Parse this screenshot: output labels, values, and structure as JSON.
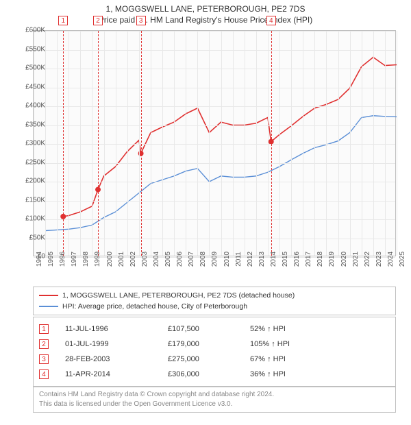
{
  "title_line1": "1, MOGGSWELL LANE, PETERBOROUGH, PE2 7DS",
  "title_line2": "Price paid vs. HM Land Registry's House Price Index (HPI)",
  "chart": {
    "type": "line",
    "x_start": 1994,
    "x_end": 2025,
    "ylim": [
      0,
      600000
    ],
    "ytick_step": 50000,
    "ylabels": [
      "£0",
      "£50K",
      "£100K",
      "£150K",
      "£200K",
      "£250K",
      "£300K",
      "£350K",
      "£400K",
      "£450K",
      "£500K",
      "£550K",
      "£600K"
    ],
    "xlabels": [
      "1994",
      "1995",
      "1996",
      "1997",
      "1998",
      "1999",
      "2000",
      "2001",
      "2002",
      "2003",
      "2004",
      "2005",
      "2006",
      "2007",
      "2008",
      "2009",
      "2010",
      "2011",
      "2012",
      "2013",
      "2014",
      "2015",
      "2016",
      "2017",
      "2018",
      "2019",
      "2020",
      "2021",
      "2022",
      "2023",
      "2024",
      "2025"
    ],
    "plot_bg": "#fbfbfb",
    "grid_color": "#e8e8e8",
    "series": [
      {
        "name": "hpi",
        "color": "#5b8fd6",
        "width": 1.4,
        "points": [
          [
            1995.0,
            70000
          ],
          [
            1996.0,
            72000
          ],
          [
            1997.0,
            74000
          ],
          [
            1998.0,
            78000
          ],
          [
            1999.0,
            85000
          ],
          [
            2000.0,
            105000
          ],
          [
            2001.0,
            120000
          ],
          [
            2002.0,
            145000
          ],
          [
            2003.0,
            170000
          ],
          [
            2004.0,
            195000
          ],
          [
            2005.0,
            205000
          ],
          [
            2006.0,
            215000
          ],
          [
            2007.0,
            228000
          ],
          [
            2008.0,
            235000
          ],
          [
            2009.0,
            200000
          ],
          [
            2010.0,
            215000
          ],
          [
            2011.0,
            212000
          ],
          [
            2012.0,
            212000
          ],
          [
            2013.0,
            215000
          ],
          [
            2014.0,
            225000
          ],
          [
            2015.0,
            240000
          ],
          [
            2016.0,
            258000
          ],
          [
            2017.0,
            275000
          ],
          [
            2018.0,
            290000
          ],
          [
            2019.0,
            298000
          ],
          [
            2020.0,
            308000
          ],
          [
            2021.0,
            330000
          ],
          [
            2022.0,
            370000
          ],
          [
            2023.0,
            375000
          ],
          [
            2024.0,
            373000
          ],
          [
            2025.0,
            372000
          ]
        ]
      },
      {
        "name": "price_paid",
        "color": "#e03030",
        "width": 1.6,
        "points": [
          [
            1996.53,
            107500
          ],
          [
            1997.0,
            110000
          ],
          [
            1998.0,
            120000
          ],
          [
            1999.0,
            135000
          ],
          [
            1999.5,
            179000
          ],
          [
            2000.0,
            215000
          ],
          [
            2001.0,
            240000
          ],
          [
            2002.0,
            280000
          ],
          [
            2003.0,
            310000
          ],
          [
            2003.16,
            275000
          ],
          [
            2004.0,
            330000
          ],
          [
            2005.0,
            345000
          ],
          [
            2006.0,
            358000
          ],
          [
            2007.0,
            380000
          ],
          [
            2008.0,
            395000
          ],
          [
            2009.0,
            330000
          ],
          [
            2010.0,
            358000
          ],
          [
            2011.0,
            350000
          ],
          [
            2012.0,
            350000
          ],
          [
            2013.0,
            355000
          ],
          [
            2014.0,
            370000
          ],
          [
            2014.28,
            306000
          ],
          [
            2015.0,
            325000
          ],
          [
            2016.0,
            348000
          ],
          [
            2017.0,
            373000
          ],
          [
            2018.0,
            395000
          ],
          [
            2019.0,
            405000
          ],
          [
            2020.0,
            418000
          ],
          [
            2021.0,
            448000
          ],
          [
            2022.0,
            505000
          ],
          [
            2023.0,
            530000
          ],
          [
            2024.0,
            508000
          ],
          [
            2025.0,
            510000
          ]
        ]
      }
    ],
    "sale_markers": [
      {
        "num": "1",
        "x": 1996.53,
        "y": 107500
      },
      {
        "num": "2",
        "x": 1999.5,
        "y": 179000
      },
      {
        "num": "3",
        "x": 2003.16,
        "y": 275000
      },
      {
        "num": "4",
        "x": 2014.28,
        "y": 306000
      }
    ],
    "marker_color": "#e03030",
    "marker_radius": 4
  },
  "legend": {
    "items": [
      {
        "color": "#e03030",
        "label": "1, MOGGSWELL LANE, PETERBOROUGH, PE2 7DS (detached house)"
      },
      {
        "color": "#5b8fd6",
        "label": "HPI: Average price, detached house, City of Peterborough"
      }
    ]
  },
  "transactions": [
    {
      "num": "1",
      "date": "11-JUL-1996",
      "price": "£107,500",
      "pct": "52% ↑ HPI"
    },
    {
      "num": "2",
      "date": "01-JUL-1999",
      "price": "£179,000",
      "pct": "105% ↑ HPI"
    },
    {
      "num": "3",
      "date": "28-FEB-2003",
      "price": "£275,000",
      "pct": "67% ↑ HPI"
    },
    {
      "num": "4",
      "date": "11-APR-2014",
      "price": "£306,000",
      "pct": "36% ↑ HPI"
    }
  ],
  "footer_line1": "Contains HM Land Registry data © Crown copyright and database right 2024.",
  "footer_line2": "This data is licensed under the Open Government Licence v3.0."
}
